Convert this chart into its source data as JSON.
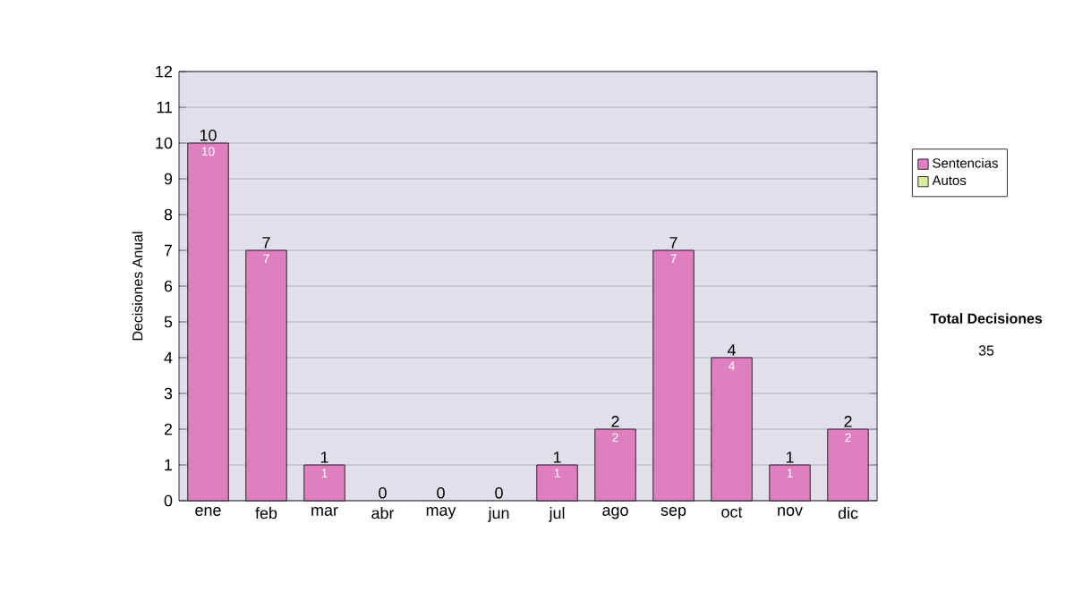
{
  "chart_data": {
    "type": "bar",
    "stacked": true,
    "ylabel": "Decisiones Anual",
    "categories": [
      "ene",
      "feb",
      "mar",
      "abr",
      "may",
      "jun",
      "jul",
      "ago",
      "sep",
      "oct",
      "nov",
      "dic"
    ],
    "series": [
      {
        "name": "Sentencias",
        "color": "#e07fc0",
        "values": [
          10,
          7,
          1,
          0,
          0,
          0,
          1,
          2,
          7,
          4,
          1,
          2
        ],
        "value_labels": [
          "10",
          "7",
          "1",
          null,
          null,
          null,
          "1",
          "2",
          "7",
          "4",
          "1",
          "2"
        ]
      },
      {
        "name": "Autos",
        "color": "#d8eca0",
        "values": [
          0,
          0,
          0,
          0,
          0,
          0,
          0,
          0,
          0,
          0,
          0,
          0
        ]
      }
    ],
    "totals": [
      "10",
      "7",
      "1",
      "0",
      "0",
      "0",
      "1",
      "2",
      "7",
      "4",
      "1",
      "2"
    ],
    "ylim": [
      0,
      12
    ],
    "yticks": [
      0,
      1,
      2,
      3,
      4,
      5,
      6,
      7,
      8,
      9,
      10,
      11,
      12
    ],
    "grid": "y",
    "legend": "right",
    "annotations": [
      "Total Decisiones",
      "35"
    ]
  }
}
